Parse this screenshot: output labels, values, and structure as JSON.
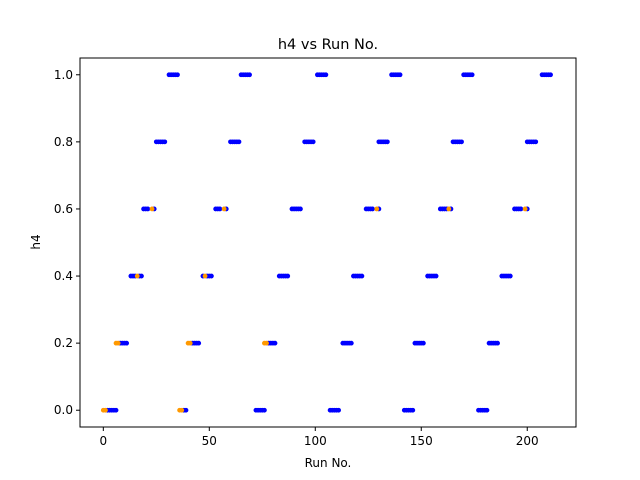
{
  "chart_data": {
    "type": "scatter",
    "title": "h4 vs Run No.",
    "xlabel": "Run No.",
    "ylabel": "h4",
    "xlim": [
      -11,
      223
    ],
    "ylim": [
      -0.05,
      1.05
    ],
    "xticks": [
      0,
      50,
      100,
      150,
      200
    ],
    "yticks": [
      0.0,
      0.2,
      0.4,
      0.6,
      0.8,
      1.0
    ],
    "xtick_labels": [
      "0",
      "50",
      "100",
      "150",
      "200"
    ],
    "ytick_labels": [
      "0.0",
      "0.2",
      "0.4",
      "0.6",
      "0.8",
      "1.0"
    ],
    "grid": false,
    "series": [
      {
        "color": "#0000ff",
        "points": [
          [
            2,
            0.0
          ],
          [
            3,
            0.0
          ],
          [
            4,
            0.0
          ],
          [
            5,
            0.0
          ],
          [
            6,
            0.0
          ],
          [
            38,
            0.0
          ],
          [
            39,
            0.0
          ],
          [
            72,
            0.0
          ],
          [
            73,
            0.0
          ],
          [
            74,
            0.0
          ],
          [
            75,
            0.0
          ],
          [
            76,
            0.0
          ],
          [
            107,
            0.0
          ],
          [
            108,
            0.0
          ],
          [
            109,
            0.0
          ],
          [
            110,
            0.0
          ],
          [
            111,
            0.0
          ],
          [
            142,
            0.0
          ],
          [
            143,
            0.0
          ],
          [
            144,
            0.0
          ],
          [
            145,
            0.0
          ],
          [
            146,
            0.0
          ],
          [
            177,
            0.0
          ],
          [
            178,
            0.0
          ],
          [
            179,
            0.0
          ],
          [
            180,
            0.0
          ],
          [
            181,
            0.0
          ],
          [
            8,
            0.2
          ],
          [
            9,
            0.2
          ],
          [
            10,
            0.2
          ],
          [
            11,
            0.2
          ],
          [
            42,
            0.2
          ],
          [
            43,
            0.2
          ],
          [
            44,
            0.2
          ],
          [
            45,
            0.2
          ],
          [
            78,
            0.2
          ],
          [
            79,
            0.2
          ],
          [
            80,
            0.2
          ],
          [
            81,
            0.2
          ],
          [
            113,
            0.2
          ],
          [
            114,
            0.2
          ],
          [
            115,
            0.2
          ],
          [
            116,
            0.2
          ],
          [
            117,
            0.2
          ],
          [
            147,
            0.2
          ],
          [
            148,
            0.2
          ],
          [
            149,
            0.2
          ],
          [
            150,
            0.2
          ],
          [
            151,
            0.2
          ],
          [
            182,
            0.2
          ],
          [
            183,
            0.2
          ],
          [
            184,
            0.2
          ],
          [
            185,
            0.2
          ],
          [
            186,
            0.2
          ],
          [
            13,
            0.4
          ],
          [
            14,
            0.4
          ],
          [
            15,
            0.4
          ],
          [
            17,
            0.4
          ],
          [
            18,
            0.4
          ],
          [
            47,
            0.4
          ],
          [
            49,
            0.4
          ],
          [
            50,
            0.4
          ],
          [
            51,
            0.4
          ],
          [
            83,
            0.4
          ],
          [
            84,
            0.4
          ],
          [
            85,
            0.4
          ],
          [
            86,
            0.4
          ],
          [
            87,
            0.4
          ],
          [
            118,
            0.4
          ],
          [
            119,
            0.4
          ],
          [
            120,
            0.4
          ],
          [
            121,
            0.4
          ],
          [
            122,
            0.4
          ],
          [
            153,
            0.4
          ],
          [
            154,
            0.4
          ],
          [
            155,
            0.4
          ],
          [
            156,
            0.4
          ],
          [
            157,
            0.4
          ],
          [
            188,
            0.4
          ],
          [
            189,
            0.4
          ],
          [
            190,
            0.4
          ],
          [
            191,
            0.4
          ],
          [
            192,
            0.4
          ],
          [
            19,
            0.6
          ],
          [
            20,
            0.6
          ],
          [
            21,
            0.6
          ],
          [
            24,
            0.6
          ],
          [
            53,
            0.6
          ],
          [
            54,
            0.6
          ],
          [
            55,
            0.6
          ],
          [
            58,
            0.6
          ],
          [
            89,
            0.6
          ],
          [
            90,
            0.6
          ],
          [
            91,
            0.6
          ],
          [
            92,
            0.6
          ],
          [
            93,
            0.6
          ],
          [
            124,
            0.6
          ],
          [
            125,
            0.6
          ],
          [
            126,
            0.6
          ],
          [
            127,
            0.6
          ],
          [
            130,
            0.6
          ],
          [
            159,
            0.6
          ],
          [
            160,
            0.6
          ],
          [
            161,
            0.6
          ],
          [
            162,
            0.6
          ],
          [
            164,
            0.6
          ],
          [
            194,
            0.6
          ],
          [
            195,
            0.6
          ],
          [
            196,
            0.6
          ],
          [
            197,
            0.6
          ],
          [
            200,
            0.6
          ],
          [
            25,
            0.8
          ],
          [
            26,
            0.8
          ],
          [
            27,
            0.8
          ],
          [
            28,
            0.8
          ],
          [
            29,
            0.8
          ],
          [
            60,
            0.8
          ],
          [
            61,
            0.8
          ],
          [
            62,
            0.8
          ],
          [
            63,
            0.8
          ],
          [
            64,
            0.8
          ],
          [
            95,
            0.8
          ],
          [
            96,
            0.8
          ],
          [
            97,
            0.8
          ],
          [
            98,
            0.8
          ],
          [
            99,
            0.8
          ],
          [
            130,
            0.8
          ],
          [
            131,
            0.8
          ],
          [
            132,
            0.8
          ],
          [
            133,
            0.8
          ],
          [
            134,
            0.8
          ],
          [
            165,
            0.8
          ],
          [
            166,
            0.8
          ],
          [
            167,
            0.8
          ],
          [
            168,
            0.8
          ],
          [
            169,
            0.8
          ],
          [
            200,
            0.8
          ],
          [
            201,
            0.8
          ],
          [
            202,
            0.8
          ],
          [
            203,
            0.8
          ],
          [
            204,
            0.8
          ],
          [
            31,
            1.0
          ],
          [
            32,
            1.0
          ],
          [
            33,
            1.0
          ],
          [
            34,
            1.0
          ],
          [
            35,
            1.0
          ],
          [
            65,
            1.0
          ],
          [
            66,
            1.0
          ],
          [
            67,
            1.0
          ],
          [
            68,
            1.0
          ],
          [
            69,
            1.0
          ],
          [
            101,
            1.0
          ],
          [
            102,
            1.0
          ],
          [
            103,
            1.0
          ],
          [
            104,
            1.0
          ],
          [
            105,
            1.0
          ],
          [
            136,
            1.0
          ],
          [
            137,
            1.0
          ],
          [
            138,
            1.0
          ],
          [
            139,
            1.0
          ],
          [
            140,
            1.0
          ],
          [
            170,
            1.0
          ],
          [
            171,
            1.0
          ],
          [
            172,
            1.0
          ],
          [
            173,
            1.0
          ],
          [
            174,
            1.0
          ],
          [
            207,
            1.0
          ],
          [
            208,
            1.0
          ],
          [
            209,
            1.0
          ],
          [
            210,
            1.0
          ],
          [
            211,
            1.0
          ]
        ]
      },
      {
        "color": "#ff9900",
        "points": [
          [
            0,
            0.0
          ],
          [
            1,
            0.0
          ],
          [
            36,
            0.0
          ],
          [
            37,
            0.0
          ],
          [
            6,
            0.2
          ],
          [
            7,
            0.2
          ],
          [
            40,
            0.2
          ],
          [
            41,
            0.2
          ],
          [
            76,
            0.2
          ],
          [
            77,
            0.2
          ],
          [
            16,
            0.4
          ],
          [
            48,
            0.4
          ],
          [
            23,
            0.6
          ],
          [
            57,
            0.6
          ],
          [
            129,
            0.6
          ],
          [
            163,
            0.6
          ],
          [
            199,
            0.6
          ]
        ]
      }
    ]
  }
}
